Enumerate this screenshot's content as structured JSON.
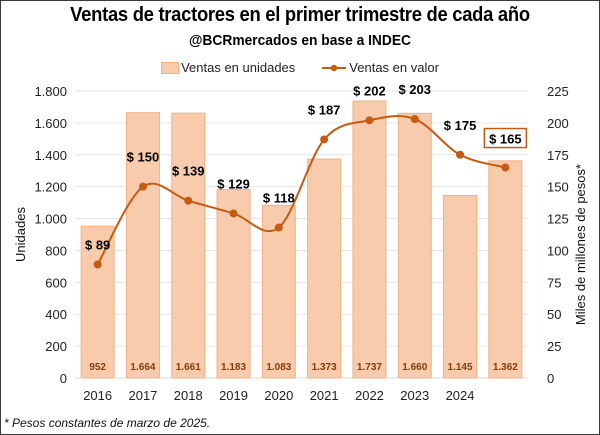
{
  "chart_data": {
    "type": "bar",
    "title": "Ventas de tractores en el primer trimestre de cada año",
    "subtitle": "@BCRmercados en base a INDEC",
    "categories": [
      "2016",
      "2017",
      "2018",
      "2019",
      "2020",
      "2021",
      "2022",
      "2023",
      "2024",
      ""
    ],
    "series": [
      {
        "name": "Ventas en unidades",
        "type": "bar",
        "axis": "left",
        "values": [
          952,
          1664,
          1661,
          1183,
          1083,
          1373,
          1737,
          1660,
          1145,
          1362
        ],
        "labels": [
          "952",
          "1.664",
          "1.661",
          "1.183",
          "1.083",
          "1.373",
          "1.737",
          "1.660",
          "1.145",
          "1.362"
        ],
        "color": "#f8cbad",
        "edge_color": "#f4b183",
        "label_color": "#843c0c"
      },
      {
        "name": "Ventas en valor",
        "type": "line",
        "axis": "right",
        "smooth": true,
        "values": [
          89,
          150,
          139,
          129,
          118,
          187,
          202,
          203,
          175,
          165
        ],
        "labels": [
          "$ 89",
          "$ 150",
          "$ 139",
          "$ 129",
          "$ 118",
          "$ 187",
          "$ 202",
          "$ 203",
          "$ 175",
          "$ 165"
        ],
        "color": "#c55a11",
        "highlighted_label_index": 9
      }
    ],
    "ylabel": "Unidades",
    "ylim": [
      0,
      1800
    ],
    "yticks": [
      0,
      200,
      400,
      600,
      800,
      1000,
      1200,
      1400,
      1600,
      1800
    ],
    "ytick_labels": [
      "0",
      "200",
      "400",
      "600",
      "800",
      "1.000",
      "1.200",
      "1.400",
      "1.600",
      "1.800"
    ],
    "y2label": "Miles de millones de pesos*",
    "y2lim": [
      0,
      225
    ],
    "y2ticks": [
      0,
      25,
      50,
      75,
      100,
      125,
      150,
      175,
      200,
      225
    ],
    "y2tick_labels": [
      "0",
      "25",
      "50",
      "75",
      "100",
      "125",
      "150",
      "175",
      "200",
      "225"
    ],
    "grid": true,
    "legend_position": "top-center"
  },
  "footnote": "* Pesos constantes de marzo de 2025."
}
